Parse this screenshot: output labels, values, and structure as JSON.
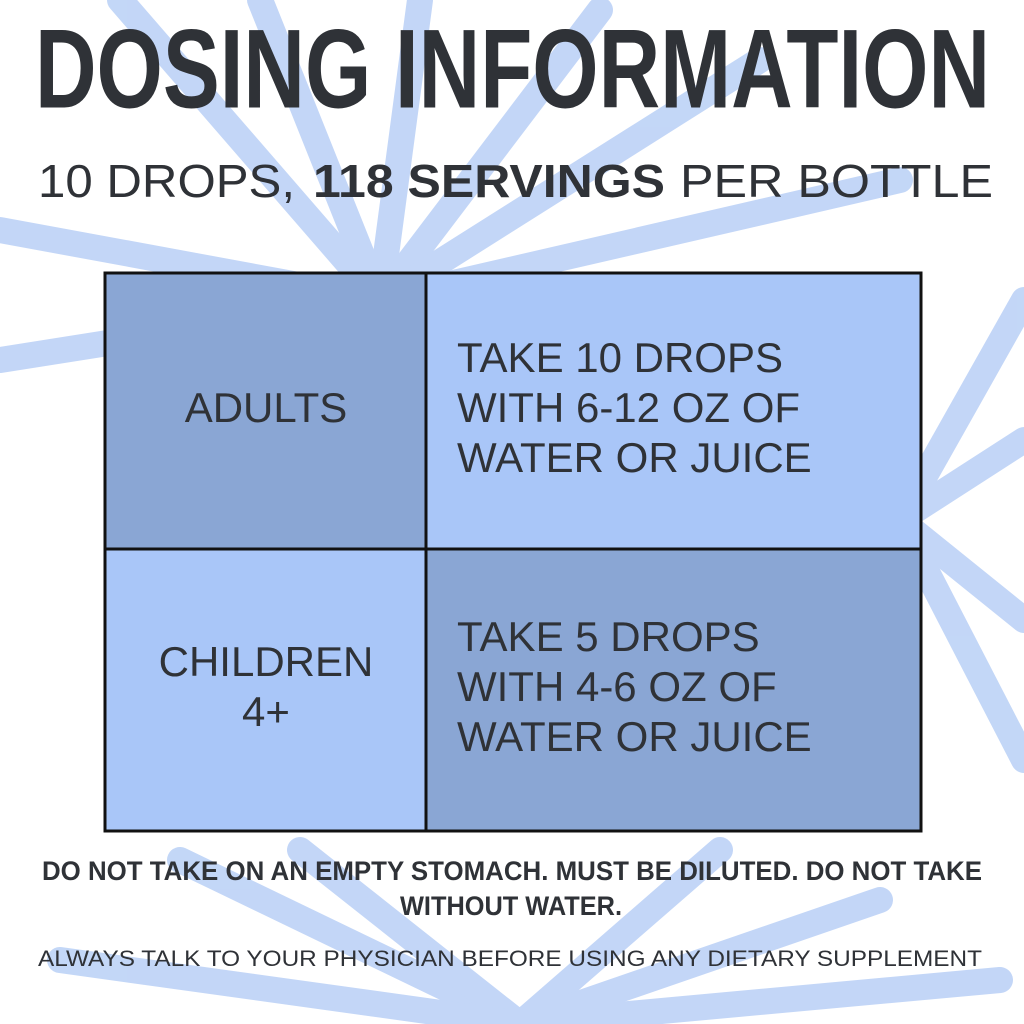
{
  "header": {
    "title": "DOSING INFORMATION",
    "subtitle": {
      "start": "10 DROPS,",
      "bold": "118 SERVINGS",
      "end": "PER BOTTLE"
    }
  },
  "table": {
    "rows": [
      [
        [
          "ADULTS"
        ],
        [
          "TAKE 10 DROPS",
          "WITH 6-12 OZ OF",
          "WATER OR JUICE"
        ]
      ],
      [
        [
          "CHILDREN",
          "4+"
        ],
        [
          "TAKE 5 DROPS",
          "WITH 4-6 OZ OF",
          "WATER OR JUICE"
        ]
      ]
    ]
  },
  "warning": [
    "DO NOT TAKE ON AN EMPTY STOMACH. MUST BE DILUTED. DO NOT TAKE",
    "WITHOUT WATER."
  ],
  "footer": "ALWAYS TALK TO YOUR PHYSICIAN BEFORE USING ANY DIETARY SUPPLEMENT"
}
